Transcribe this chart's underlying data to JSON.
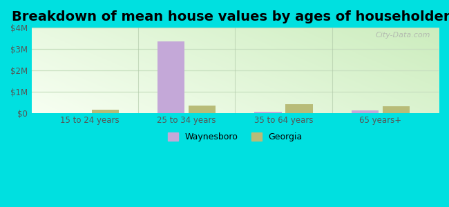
{
  "title": "Breakdown of mean house values by ages of householders",
  "categories": [
    "15 to 24 years",
    "25 to 34 years",
    "35 to 64 years",
    "65 years+"
  ],
  "waynesboro_values": [
    0,
    3350000,
    75000,
    140000
  ],
  "georgia_values": [
    165000,
    370000,
    420000,
    340000
  ],
  "waynesboro_color": "#c4a8d8",
  "georgia_color": "#b8bc78",
  "ylim": [
    0,
    4000000
  ],
  "yticks": [
    0,
    1000000,
    2000000,
    3000000,
    4000000
  ],
  "ytick_labels": [
    "$0",
    "$1M",
    "$2M",
    "$3M",
    "$4M"
  ],
  "background_color": "#00e0e0",
  "title_fontsize": 14,
  "legend_label_waynesboro": "Waynesboro",
  "legend_label_georgia": "Georgia",
  "watermark_text": "City-Data.com",
  "bar_width": 0.28,
  "gradient_colors_left": "#b8d8b0",
  "gradient_colors_right": "#f0f8e8",
  "grid_color": "#c8e0c0",
  "tick_color": "#555555",
  "separator_color": "#b0c8a8"
}
